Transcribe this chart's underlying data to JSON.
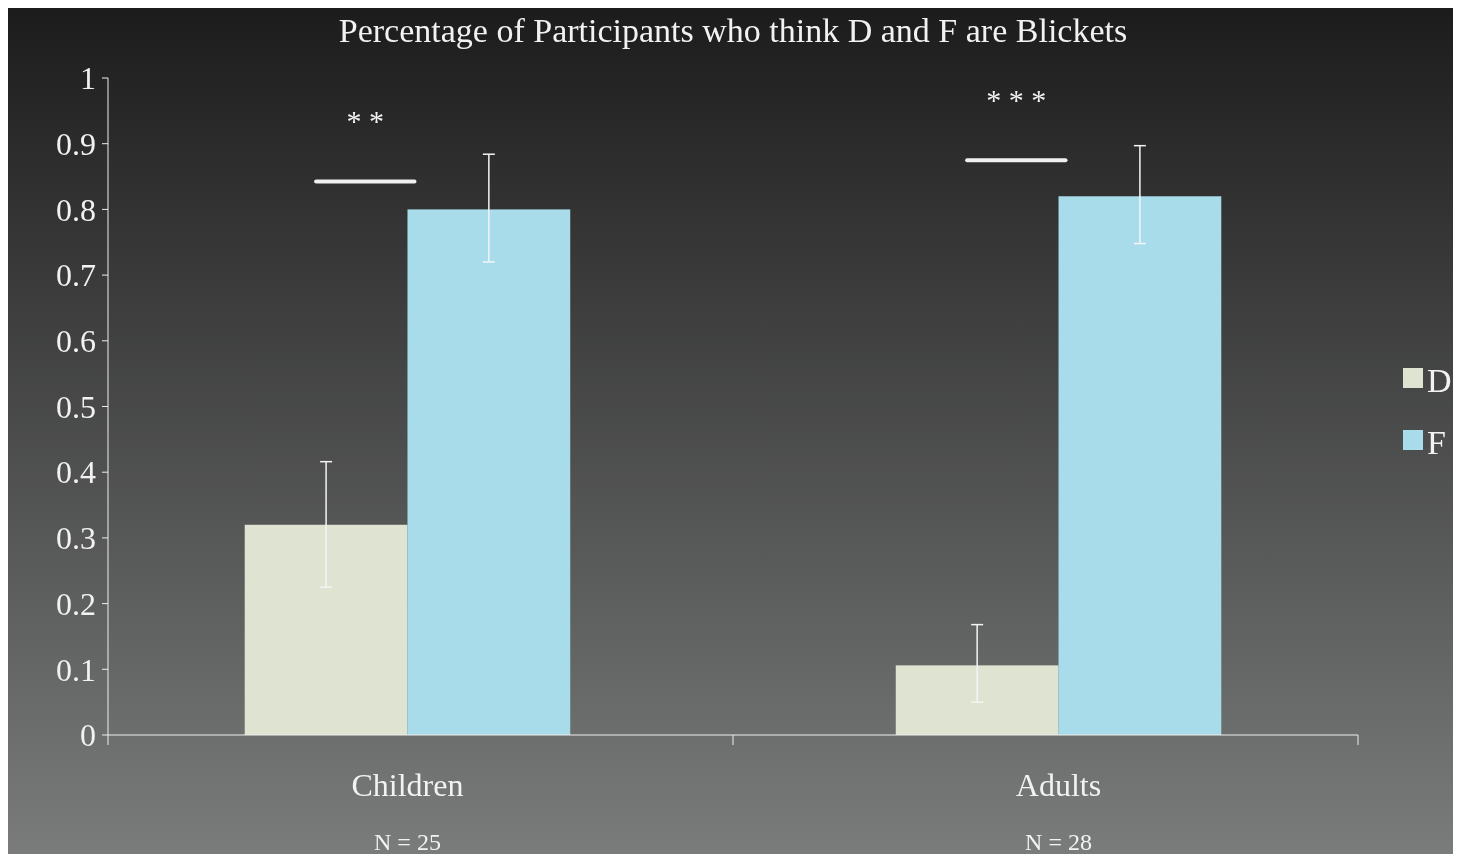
{
  "chart_data": {
    "type": "bar",
    "title": "Percentage of Participants who think D and F are Blickets",
    "categories": [
      "Children",
      "Adults"
    ],
    "series": [
      {
        "name": "D",
        "color": "#dfe4d2",
        "values": [
          0.32,
          0.106
        ],
        "errors": [
          [
            0.225,
            0.416
          ],
          [
            0.05,
            0.168
          ]
        ]
      },
      {
        "name": "F",
        "color": "#a8dcea",
        "values": [
          0.8,
          0.82
        ],
        "errors": [
          [
            0.72,
            0.884
          ],
          [
            0.748,
            0.897
          ]
        ]
      }
    ],
    "ylim": [
      0,
      1
    ],
    "yticks": [
      0,
      0.1,
      0.2,
      0.3,
      0.4,
      0.5,
      0.6,
      0.7,
      0.8,
      0.9,
      1
    ],
    "legend": "right",
    "annotations": [
      "* *",
      "* * *",
      "N = 25",
      "N = 28"
    ]
  }
}
